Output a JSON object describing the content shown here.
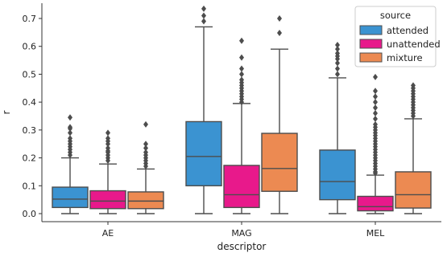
{
  "chart_data": {
    "type": "box",
    "xlabel": "descriptor",
    "ylabel": "r",
    "categories": [
      "AE",
      "MAG",
      "MEL"
    ],
    "ylim": [
      -0.03,
      0.77
    ],
    "yticks": [
      0.0,
      0.1,
      0.2,
      0.3,
      0.4,
      0.5,
      0.6,
      0.7
    ],
    "ytick_labels": [
      "0.0",
      "0.1",
      "0.2",
      "0.3",
      "0.4",
      "0.5",
      "0.6",
      "0.7"
    ],
    "grid": false,
    "legend": {
      "title": "source",
      "position": "top-right",
      "entries": [
        "attended",
        "unattended",
        "mixture"
      ]
    },
    "series": [
      {
        "name": "attended",
        "color": "#3b93d1",
        "boxes": [
          {
            "min": 0.0,
            "q1": 0.022,
            "median": 0.052,
            "q3": 0.095,
            "max": 0.2,
            "outliers": [
              0.21,
              0.22,
              0.23,
              0.24,
              0.25,
              0.26,
              0.27,
              0.29,
              0.305,
              0.31,
              0.345
            ]
          },
          {
            "min": 0.0,
            "q1": 0.1,
            "median": 0.205,
            "q3": 0.33,
            "max": 0.67,
            "outliers": [
              0.69,
              0.71,
              0.735
            ]
          },
          {
            "min": 0.0,
            "q1": 0.05,
            "median": 0.115,
            "q3": 0.228,
            "max": 0.487,
            "outliers": [
              0.5,
              0.52,
              0.54,
              0.555,
              0.565,
              0.575,
              0.59,
              0.605
            ]
          }
        ]
      },
      {
        "name": "unattended",
        "color": "#e8198b",
        "boxes": [
          {
            "min": 0.0,
            "q1": 0.018,
            "median": 0.045,
            "q3": 0.082,
            "max": 0.178,
            "outliers": [
              0.19,
              0.2,
              0.21,
              0.22,
              0.225,
              0.235,
              0.25,
              0.26,
              0.27,
              0.29
            ]
          },
          {
            "min": 0.0,
            "q1": 0.022,
            "median": 0.068,
            "q3": 0.173,
            "max": 0.395,
            "outliers": [
              0.4,
              0.41,
              0.42,
              0.43,
              0.44,
              0.45,
              0.46,
              0.47,
              0.48,
              0.5,
              0.52,
              0.56,
              0.62
            ]
          },
          {
            "min": 0.0,
            "q1": 0.01,
            "median": 0.025,
            "q3": 0.062,
            "max": 0.138,
            "outliers": [
              0.145,
              0.15,
              0.16,
              0.17,
              0.18,
              0.19,
              0.2,
              0.21,
              0.22,
              0.23,
              0.24,
              0.25,
              0.26,
              0.27,
              0.28,
              0.29,
              0.3,
              0.31,
              0.32,
              0.34,
              0.36,
              0.38,
              0.4,
              0.42,
              0.44,
              0.49
            ]
          }
        ]
      },
      {
        "name": "mixture",
        "color": "#ec8a52",
        "boxes": [
          {
            "min": 0.0,
            "q1": 0.018,
            "median": 0.045,
            "q3": 0.078,
            "max": 0.16,
            "outliers": [
              0.17,
              0.18,
              0.19,
              0.2,
              0.21,
              0.22,
              0.235,
              0.25,
              0.32
            ]
          },
          {
            "min": 0.0,
            "q1": 0.08,
            "median": 0.162,
            "q3": 0.288,
            "max": 0.59,
            "outliers": [
              0.648,
              0.7
            ]
          },
          {
            "min": 0.0,
            "q1": 0.02,
            "median": 0.068,
            "q3": 0.15,
            "max": 0.34,
            "outliers": [
              0.35,
              0.36,
              0.37,
              0.38,
              0.39,
              0.4,
              0.41,
              0.42,
              0.43,
              0.44,
              0.45,
              0.46
            ]
          }
        ]
      }
    ]
  }
}
